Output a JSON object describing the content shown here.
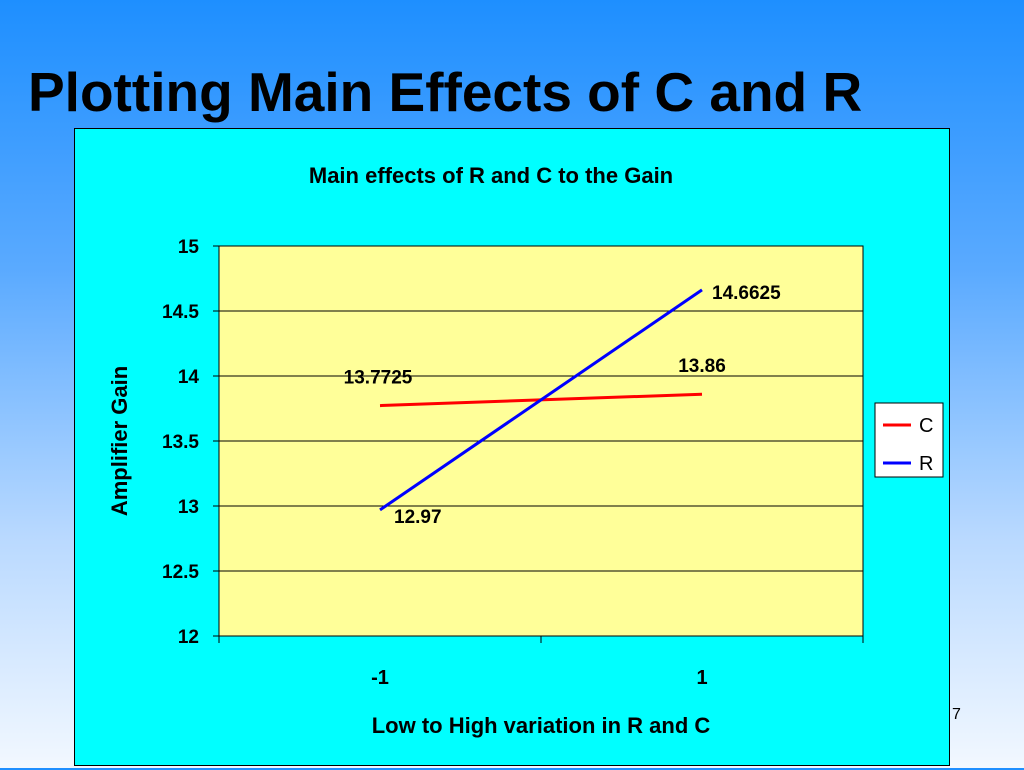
{
  "slide": {
    "title": "Plotting Main Effects of C and R",
    "page_number": "7"
  },
  "colors": {
    "background_top": "#1e8fff",
    "chart_area": "#00ffff",
    "plot_area": "#ffff99",
    "series_c": "#ff0000",
    "series_r": "#0000ff"
  },
  "chart_data": {
    "type": "line",
    "title": "Main effects of R and C to the Gain",
    "xlabel": "Low to High variation in R and C",
    "ylabel": "Amplifier Gain",
    "categories": [
      "-1",
      "1"
    ],
    "ylim": [
      12,
      15
    ],
    "yticks": [
      12,
      12.5,
      13,
      13.5,
      14,
      14.5,
      15
    ],
    "ytick_labels": [
      "12",
      "12.5",
      "13",
      "13.5",
      "14",
      "14.5",
      "15"
    ],
    "grid": true,
    "legend": "right",
    "series": [
      {
        "name": "C",
        "color": "#ff0000",
        "values": [
          13.7725,
          13.86
        ],
        "labels": [
          "13.7725",
          "13.86"
        ]
      },
      {
        "name": "R",
        "color": "#0000ff",
        "values": [
          12.97,
          14.6625
        ],
        "labels": [
          "12.97",
          "14.6625"
        ]
      }
    ]
  }
}
